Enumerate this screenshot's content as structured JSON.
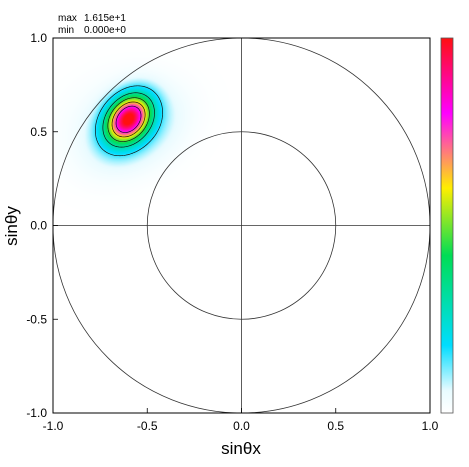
{
  "chart_data": {
    "type": "heatmap",
    "xlabel": "sinθx",
    "ylabel": "sinθy",
    "xlim": [
      -1.0,
      1.0
    ],
    "ylim": [
      -1.0,
      1.0
    ],
    "x_ticks": [
      "-1.0",
      "-0.5",
      "0.0",
      "0.5",
      "1.0"
    ],
    "y_ticks": [
      "-1.0",
      "-0.5",
      "0.0",
      "0.5",
      "1.0"
    ],
    "max_label": "max",
    "max_value": "1.615e+1",
    "min_label": "min",
    "min_value": "0.000e+0",
    "max_numeric": 16.15,
    "min_numeric": 0.0,
    "circles_radius": [
      1.0,
      0.5
    ],
    "crosshair": true,
    "peak": {
      "x": -0.6,
      "y": 0.57,
      "value": 16.15
    },
    "contour_levels": [
      2.5,
      5.0,
      7.5,
      10.0,
      12.5
    ],
    "colorbar": {
      "stops": [
        "#ffffff",
        "#00ddff",
        "#00dd55",
        "#ffee00",
        "#ff00ff",
        "#ff1010"
      ],
      "orientation": "vertical"
    }
  }
}
